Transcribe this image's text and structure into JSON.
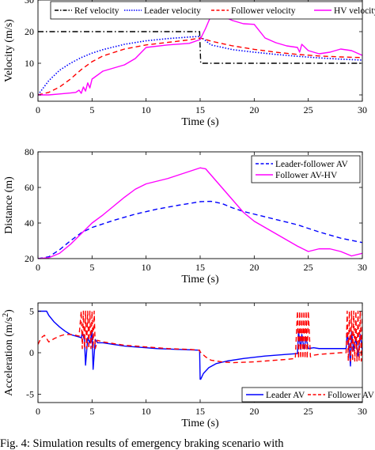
{
  "caption": "Fig. 4: Simulation results of emergency braking scenario with",
  "chart_data": [
    {
      "type": "line",
      "title": "",
      "xlabel": "Time (s)",
      "ylabel": "Velocity (m/s)",
      "xlim": [
        0,
        30
      ],
      "ylim": [
        -2,
        30
      ],
      "xticks": [
        0,
        5,
        10,
        15,
        20,
        25,
        30
      ],
      "yticks": [
        0,
        10,
        20,
        30
      ],
      "grid": false,
      "legend": "top",
      "series": [
        {
          "name": "Ref velocity",
          "color": "#000000",
          "dash": "dashdot",
          "x": [
            0,
            14.95,
            15.05,
            30
          ],
          "y": [
            20,
            20,
            10,
            10
          ]
        },
        {
          "name": "Leader velocity",
          "color": "#0000ff",
          "dash": "dotted",
          "x": [
            0,
            1,
            2,
            3,
            4,
            5,
            6,
            8,
            10,
            12,
            14,
            15,
            16,
            18,
            20,
            22,
            24,
            26,
            28,
            30
          ],
          "y": [
            0,
            4.5,
            7.8,
            10,
            11.8,
            13.2,
            14.3,
            16,
            17.1,
            17.8,
            18.3,
            18.5,
            15.8,
            14.3,
            13.5,
            12.8,
            12.2,
            11.7,
            11.3,
            11
          ]
        },
        {
          "name": "Follower velocity",
          "color": "#ff0000",
          "dash": "dashed",
          "x": [
            0,
            1,
            2,
            3,
            4,
            5,
            6,
            8,
            10,
            12,
            14,
            15,
            16,
            18,
            20,
            22,
            24,
            26,
            28,
            30
          ],
          "y": [
            0,
            0.8,
            2.5,
            5,
            8,
            10.5,
            12.3,
            14.5,
            15.8,
            16.6,
            17.4,
            18,
            17,
            15.5,
            14.4,
            13.5,
            12.8,
            12.3,
            12,
            11.8
          ]
        },
        {
          "name": "HV velocity",
          "color": "#ff00ff",
          "dash": "solid",
          "x": [
            0,
            1,
            2,
            3,
            3.5,
            3.8,
            4,
            4.2,
            4.4,
            4.6,
            4.8,
            5,
            6,
            7,
            8,
            9,
            10,
            12,
            14,
            15,
            15.5,
            16,
            16.5,
            17,
            18,
            19,
            20,
            21,
            22,
            23,
            24,
            24.2,
            24.4,
            25,
            26,
            27,
            28,
            29,
            30
          ],
          "y": [
            0,
            0,
            0.3,
            0.6,
            0.8,
            1.5,
            0.5,
            2.5,
            1.2,
            3.8,
            2.2,
            5,
            7.5,
            8.5,
            9.5,
            11.5,
            15,
            15.8,
            16.3,
            17.5,
            21,
            25,
            25.3,
            25,
            23.5,
            22.5,
            22.3,
            18,
            16.5,
            15.5,
            15,
            13.5,
            16,
            14,
            13,
            13.5,
            14.5,
            14,
            12.5
          ]
        }
      ]
    },
    {
      "type": "line",
      "title": "",
      "xlabel": "Time (s)",
      "ylabel": "Distance (m)",
      "xlim": [
        0,
        30
      ],
      "ylim": [
        20,
        80
      ],
      "xticks": [
        0,
        5,
        10,
        15,
        20,
        25,
        30
      ],
      "yticks": [
        20,
        40,
        60,
        80
      ],
      "grid": false,
      "legend": "top-right",
      "series": [
        {
          "name": "Leader-follower AV",
          "color": "#0000ff",
          "dash": "dashed",
          "x": [
            0,
            1,
            2,
            3,
            4,
            5,
            7,
            9,
            11,
            13,
            15,
            16,
            17,
            18,
            19,
            20,
            22,
            24,
            26,
            28,
            30
          ],
          "y": [
            20,
            21,
            25,
            30,
            34.5,
            37.5,
            41.5,
            45,
            47.8,
            50,
            52,
            52.2,
            51,
            48.5,
            46.5,
            45,
            42,
            39,
            35,
            31.5,
            29
          ]
        },
        {
          "name": "Follower AV-HV",
          "color": "#ff00ff",
          "dash": "solid",
          "x": [
            0,
            1,
            2,
            3,
            4,
            5,
            6,
            7,
            8,
            9,
            10,
            11,
            12,
            13,
            14,
            15,
            15.5,
            16,
            17,
            18,
            19,
            20,
            22,
            24,
            25,
            26,
            27,
            28,
            29,
            30
          ],
          "y": [
            20,
            20.5,
            23,
            28,
            34,
            40,
            44.5,
            49.5,
            54.5,
            59,
            62,
            63.5,
            65,
            67,
            69,
            71,
            70.5,
            67,
            60,
            53,
            46,
            41,
            34,
            27,
            24,
            25.5,
            25.5,
            24,
            21.5,
            23
          ]
        }
      ]
    },
    {
      "type": "line",
      "title": "",
      "xlabel": "Time (s)",
      "ylabel": "Acceleration (m/s²)",
      "ylabel_base": "Acceleration (m/s",
      "ylabel_sup": "2",
      "ylabel_end": ")",
      "xlim": [
        0,
        30
      ],
      "ylim": [
        -6,
        6
      ],
      "xticks": [
        0,
        5,
        10,
        15,
        20,
        25,
        30
      ],
      "yticks": [
        -5,
        0,
        5
      ],
      "grid": false,
      "legend": "bottom-right",
      "series": [
        {
          "name": "Leader AV",
          "color": "#0000ff",
          "dash": "solid",
          "x": [
            0,
            0.8,
            1,
            1.5,
            2,
            2.5,
            3,
            3.5,
            3.8,
            4,
            4.1,
            4.3,
            4.4,
            4.6,
            4.8,
            5,
            5.1,
            5.3,
            5.5,
            6,
            7,
            8,
            9,
            10,
            11,
            12,
            13,
            14,
            14.95,
            15,
            15.05,
            15.3,
            15.8,
            16.5,
            17.5,
            19,
            21,
            23,
            24,
            24.1,
            24.3,
            24.4,
            24.6,
            24.8,
            25,
            25.5,
            26,
            27,
            28,
            28.5,
            28.6,
            28.8,
            28.9,
            29,
            29.2,
            29.4,
            29.6,
            29.8,
            30
          ],
          "y": [
            5,
            5,
            4.5,
            3.7,
            3.1,
            2.6,
            2.2,
            2,
            1.9,
            1.8,
            2.4,
            1.5,
            -1.5,
            1.8,
            1.2,
            2.5,
            -2,
            1.6,
            1.2,
            1.2,
            1,
            0.8,
            0.7,
            0.6,
            0.5,
            0.45,
            0.4,
            0.35,
            0.3,
            -3.2,
            -3.2,
            -2.5,
            -1.8,
            -1.3,
            -1,
            -0.7,
            -0.4,
            -0.2,
            -0.1,
            2.5,
            0.4,
            2.2,
            0.5,
            1.8,
            0.5,
            0.6,
            0.5,
            0.5,
            0.5,
            0.5,
            2.4,
            0.5,
            -1.6,
            2.5,
            0.3,
            1.8,
            -0.4,
            2.2,
            0.3
          ]
        },
        {
          "name": "Follower AV",
          "color": "#ff0000",
          "dash": "dashed",
          "x": [
            0,
            0.3,
            0.6,
            1,
            1.5,
            2,
            2.5,
            3,
            3.5,
            3.8,
            4,
            4.1,
            4.2,
            4.3,
            4.4,
            4.5,
            4.6,
            4.7,
            4.8,
            4.9,
            5,
            5.1,
            5.2,
            5.3,
            5.5,
            6,
            7,
            8,
            9,
            10,
            11,
            12,
            13,
            14,
            14.95,
            15,
            15.5,
            16,
            17,
            18,
            19,
            20,
            21,
            22,
            23,
            23.8,
            24,
            24.1,
            24.2,
            24.3,
            24.4,
            24.5,
            24.6,
            24.7,
            24.8,
            24.9,
            25,
            25.2,
            25.5,
            26,
            27,
            28,
            28.5,
            28.6,
            28.7,
            28.8,
            28.9,
            29,
            29.1,
            29.2,
            29.3,
            29.4,
            29.5,
            29.6,
            29.7,
            29.8,
            29.9,
            30
          ],
          "y": [
            1,
            1.8,
            2.1,
            1.3,
            1.7,
            2,
            2.2,
            2.2,
            2.1,
            2,
            5,
            0.5,
            5,
            0.5,
            5,
            0.5,
            5,
            0.5,
            5,
            0.5,
            5,
            0.5,
            5,
            0.5,
            1.5,
            1.3,
            1.1,
            0.9,
            0.8,
            0.7,
            0.6,
            0.5,
            0.45,
            0.4,
            0.3,
            0.1,
            -0.5,
            -0.9,
            -1.1,
            -1.2,
            -1.15,
            -1.1,
            -1,
            -0.9,
            -0.8,
            -0.7,
            5,
            -0.7,
            5,
            -0.7,
            5,
            -0.7,
            5,
            -0.7,
            5,
            -0.7,
            5,
            -0.5,
            -0.3,
            -0.2,
            -0.1,
            0,
            0,
            5,
            -1,
            5,
            -1,
            5,
            -1,
            5,
            -1,
            5,
            -1,
            5,
            -1,
            5,
            -1,
            5
          ]
        }
      ]
    }
  ]
}
